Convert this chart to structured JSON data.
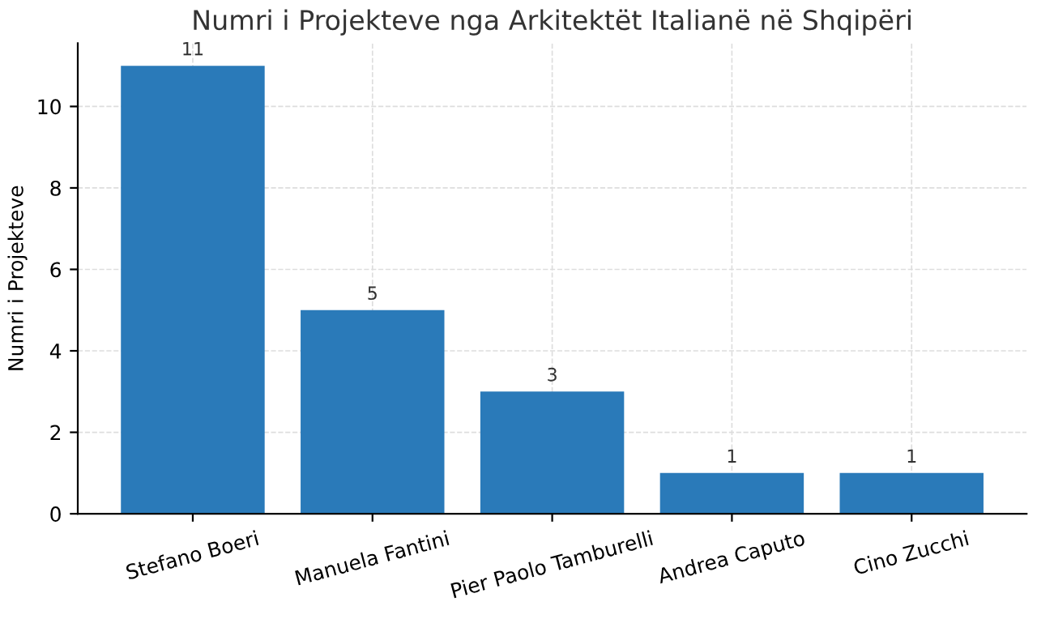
{
  "chart_data": {
    "type": "bar",
    "title": "Numri i Projekteve nga Arkitektët Italianë në Shqipëri",
    "ylabel": "Numri i Projekteve",
    "categories": [
      "Stefano Boeri",
      "Manuela Fantini",
      "Pier Paolo Tamburelli",
      "Andrea Caputo",
      "Cino Zucchi"
    ],
    "values": [
      11,
      5,
      3,
      1,
      1
    ],
    "color": "#2a7ab9",
    "ylim": [
      0,
      11.55
    ],
    "yticks": [
      0,
      2,
      4,
      6,
      8,
      10
    ],
    "grid": true,
    "data_labels": true
  }
}
